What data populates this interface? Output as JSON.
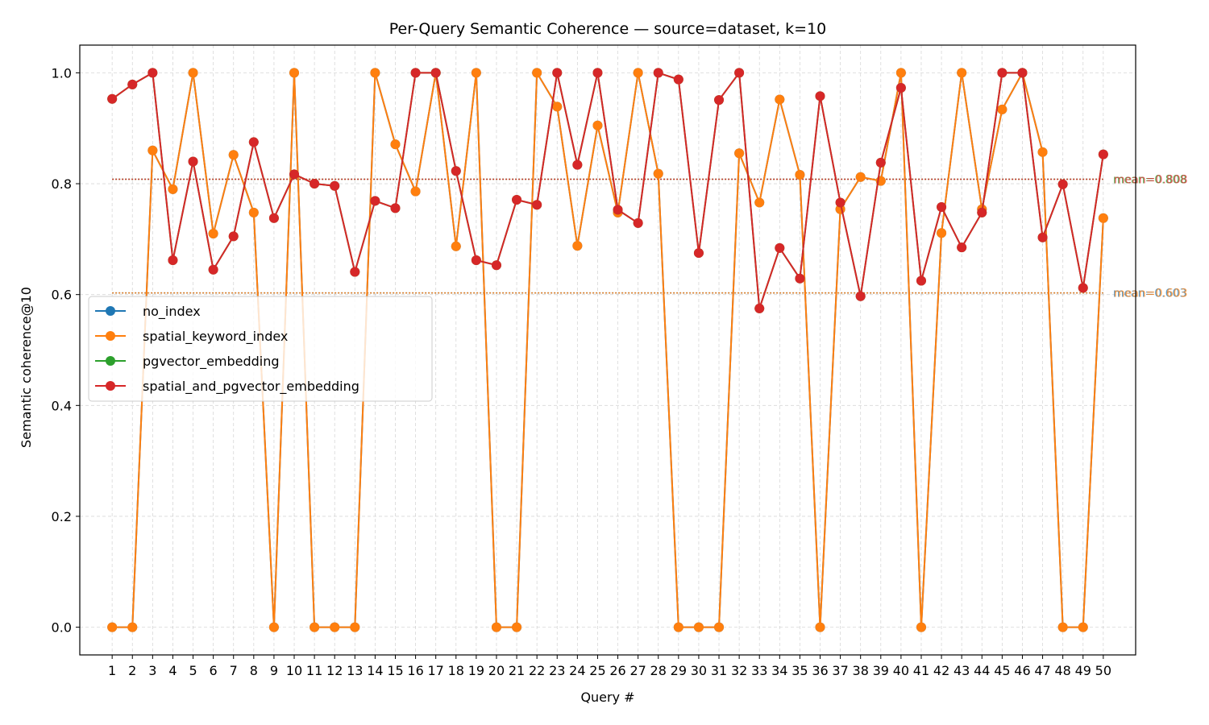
{
  "chart_data": {
    "type": "line",
    "title": "Per-Query Semantic Coherence — source=dataset, k=10",
    "xlabel": "Query #",
    "ylabel": "Semantic coherence@10",
    "x": [
      1,
      2,
      3,
      4,
      5,
      6,
      7,
      8,
      9,
      10,
      11,
      12,
      13,
      14,
      15,
      16,
      17,
      18,
      19,
      20,
      21,
      22,
      23,
      24,
      25,
      26,
      27,
      28,
      29,
      30,
      31,
      32,
      33,
      34,
      35,
      36,
      37,
      38,
      39,
      40,
      41,
      42,
      43,
      44,
      45,
      46,
      47,
      48,
      49,
      50
    ],
    "x_tick_labels": [
      "1",
      "2",
      "3",
      "4",
      "5",
      "6",
      "7",
      "8",
      "9",
      "10",
      "11",
      "12",
      "13",
      "14",
      "15",
      "16",
      "17",
      "18",
      "19",
      "20",
      "21",
      "22",
      "23",
      "24",
      "25",
      "26",
      "27",
      "28",
      "29",
      "30",
      "31",
      "32",
      "33",
      "34",
      "35",
      "36",
      "37",
      "38",
      "39",
      "40",
      "41",
      "42",
      "43",
      "44",
      "45",
      "46",
      "47",
      "48",
      "49",
      "50"
    ],
    "y_ticks": [
      "0.0",
      "0.2",
      "0.4",
      "0.6",
      "0.8",
      "1.0"
    ],
    "xlim": [
      -0.6,
      51.6
    ],
    "ylim": [
      -0.05,
      1.05
    ],
    "grid": true,
    "legend_position": "center-left",
    "series": [
      {
        "name": "no_index",
        "color": "#1f77b4",
        "values": [
          0,
          0,
          0.86,
          0.79,
          1.0,
          0.71,
          0.852,
          0.748,
          0,
          1.0,
          0,
          0,
          0,
          1.0,
          0.871,
          0.786,
          1.0,
          0.687,
          1.0,
          0,
          0,
          1.0,
          0.939,
          0.688,
          0.905,
          0.748,
          1.0,
          0.818,
          0,
          0,
          0,
          0.855,
          0.766,
          0.952,
          0.816,
          0,
          0.754,
          0.812,
          0.805,
          1.0,
          0,
          0.711,
          1.0,
          0.754,
          0.934,
          1.0,
          0.857,
          0,
          0,
          0.738
        ]
      },
      {
        "name": "spatial_keyword_index",
        "color": "#ff7f0e",
        "values": [
          0,
          0,
          0.86,
          0.79,
          1.0,
          0.71,
          0.852,
          0.748,
          0,
          1.0,
          0,
          0,
          0,
          1.0,
          0.871,
          0.786,
          1.0,
          0.687,
          1.0,
          0,
          0,
          1.0,
          0.939,
          0.688,
          0.905,
          0.748,
          1.0,
          0.818,
          0,
          0,
          0,
          0.855,
          0.766,
          0.952,
          0.816,
          0,
          0.754,
          0.812,
          0.805,
          1.0,
          0,
          0.711,
          1.0,
          0.754,
          0.934,
          1.0,
          0.857,
          0,
          0,
          0.738
        ]
      },
      {
        "name": "pgvector_embedding",
        "color": "#2ca02c",
        "values": [
          0.953,
          0.979,
          1.0,
          0.662,
          0.84,
          0.645,
          0.705,
          0.875,
          0.738,
          0.817,
          0.8,
          0.796,
          0.641,
          0.769,
          0.756,
          1.0,
          1.0,
          0.823,
          0.662,
          0.653,
          0.771,
          0.762,
          1.0,
          0.834,
          1.0,
          0.753,
          0.729,
          1.0,
          0.988,
          0.675,
          0.951,
          1.0,
          0.575,
          0.684,
          0.629,
          0.958,
          0.766,
          0.597,
          0.838,
          0.973,
          0.625,
          0.758,
          0.685,
          0.748,
          1.0,
          1.0,
          0.703,
          0.799,
          0.612,
          0.853
        ]
      },
      {
        "name": "spatial_and_pgvector_embedding",
        "color": "#d62728",
        "values": [
          0.953,
          0.979,
          1.0,
          0.662,
          0.84,
          0.645,
          0.705,
          0.875,
          0.738,
          0.817,
          0.8,
          0.796,
          0.641,
          0.769,
          0.756,
          1.0,
          1.0,
          0.823,
          0.662,
          0.653,
          0.771,
          0.762,
          1.0,
          0.834,
          1.0,
          0.753,
          0.729,
          1.0,
          0.988,
          0.675,
          0.951,
          1.0,
          0.575,
          0.684,
          0.629,
          0.958,
          0.766,
          0.597,
          0.838,
          0.973,
          0.625,
          0.758,
          0.685,
          0.748,
          1.0,
          1.0,
          0.703,
          0.799,
          0.612,
          0.853
        ]
      }
    ],
    "mean_lines": [
      {
        "value": 0.603,
        "label": "mean=0.603",
        "colors": [
          "#1f77b4",
          "#ff7f0e"
        ]
      },
      {
        "value": 0.808,
        "label": "mean=0.808",
        "colors": [
          "#2ca02c",
          "#d62728"
        ]
      }
    ]
  }
}
